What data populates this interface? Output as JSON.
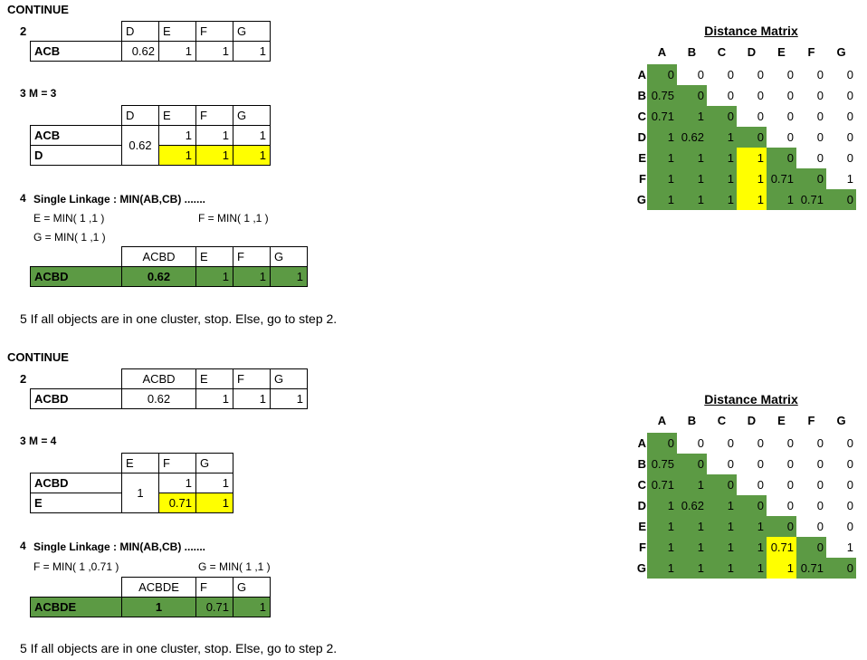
{
  "section1": {
    "continue": "CONTINUE",
    "step2": {
      "num": "2",
      "headers": [
        "D",
        "E",
        "F",
        "G"
      ],
      "row_label": "ACB",
      "values": [
        "0.62",
        "1",
        "1",
        "1"
      ]
    },
    "step3": {
      "label": "3  M = 3",
      "headers": [
        "D",
        "E",
        "F",
        "G"
      ],
      "row1_label": "ACB",
      "row2_label": "D",
      "merged_value": "0.62",
      "row1_values": [
        "1",
        "1",
        "1"
      ],
      "row2_values": [
        "1",
        "1",
        "1"
      ]
    },
    "step4": {
      "label_num": "4",
      "label": "Single Linkage : MIN(AB,CB) .......",
      "formula_e": "E = MIN( 1 ,1 )",
      "formula_f": "F = MIN( 1 ,1 )",
      "formula_g": "G = MIN( 1 ,1 )",
      "headers": [
        "ACBD",
        "E",
        "F",
        "G"
      ],
      "row_label": "ACBD",
      "values": [
        "0.62",
        "1",
        "1",
        "1"
      ]
    },
    "step5": "5  If all objects are in one cluster, stop. Else, go to step 2."
  },
  "section2": {
    "continue": "CONTINUE",
    "step2": {
      "num": "2",
      "headers": [
        "ACBD",
        "E",
        "F",
        "G"
      ],
      "row_label": "ACBD",
      "values": [
        "0.62",
        "1",
        "1",
        "1"
      ]
    },
    "step3": {
      "label": "3  M = 4",
      "headers": [
        "E",
        "F",
        "G"
      ],
      "row1_label": "ACBD",
      "row2_label": "E",
      "merged_value": "1",
      "row1_values": [
        "1",
        "1"
      ],
      "row2_values": [
        "0.71",
        "1"
      ]
    },
    "step4": {
      "label_num": "4",
      "label": "Single Linkage : MIN(AB,CB) .......",
      "formula_f": "F = MIN( 1 ,0.71 )",
      "formula_g": "G = MIN( 1 ,1 )",
      "headers": [
        "ACBDE",
        "F",
        "G"
      ],
      "row_label": "ACBDE",
      "values": [
        "1",
        "0.71",
        "1"
      ]
    },
    "step5": "5  If all objects are in one cluster, stop. Else, go to step 2."
  },
  "matrix1": {
    "title": "Distance Matrix",
    "labels": [
      "A",
      "B",
      "C",
      "D",
      "E",
      "F",
      "G"
    ],
    "rows": [
      [
        "0",
        "0",
        "0",
        "0",
        "0",
        "0",
        "0"
      ],
      [
        "0.75",
        "0",
        "0",
        "0",
        "0",
        "0",
        "0"
      ],
      [
        "0.71",
        "1",
        "0",
        "0",
        "0",
        "0",
        "0"
      ],
      [
        "1",
        "0.62",
        "1",
        "0",
        "0",
        "0",
        "0"
      ],
      [
        "1",
        "1",
        "1",
        "1",
        "0",
        "0",
        "0"
      ],
      [
        "1",
        "1",
        "1",
        "1",
        "0.71",
        "0",
        "1"
      ],
      [
        "1",
        "1",
        "1",
        "1",
        "1",
        "0.71",
        "0"
      ]
    ]
  },
  "matrix2": {
    "title": "Distance Matrix",
    "labels": [
      "A",
      "B",
      "C",
      "D",
      "E",
      "F",
      "G"
    ],
    "rows": [
      [
        "0",
        "0",
        "0",
        "0",
        "0",
        "0",
        "0"
      ],
      [
        "0.75",
        "0",
        "0",
        "0",
        "0",
        "0",
        "0"
      ],
      [
        "0.71",
        "1",
        "0",
        "0",
        "0",
        "0",
        "0"
      ],
      [
        "1",
        "0.62",
        "1",
        "0",
        "0",
        "0",
        "0"
      ],
      [
        "1",
        "1",
        "1",
        "1",
        "0",
        "0",
        "0"
      ],
      [
        "1",
        "1",
        "1",
        "1",
        "0.71",
        "0",
        "1"
      ],
      [
        "1",
        "1",
        "1",
        "1",
        "1",
        "0.71",
        "0"
      ]
    ]
  },
  "colors": {
    "green": "#5c9a44",
    "yellow": "#ffff00"
  }
}
